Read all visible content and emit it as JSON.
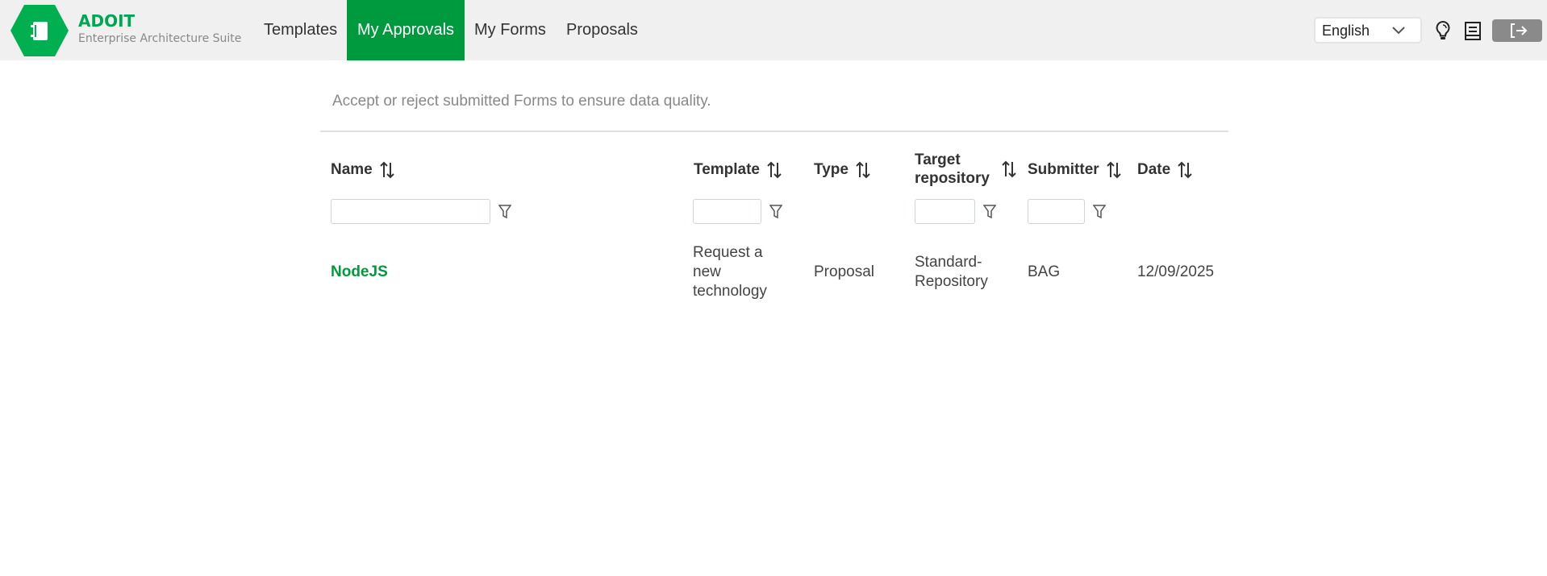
{
  "header": {
    "brand": "ADOIT",
    "subtitle": "Enterprise Architecture Suite",
    "nav": [
      {
        "label": "Templates",
        "active": false
      },
      {
        "label": "My Approvals",
        "active": true
      },
      {
        "label": "My Forms",
        "active": false
      },
      {
        "label": "Proposals",
        "active": false
      }
    ],
    "language": "English",
    "icons": [
      "lightbulb-icon",
      "book-icon",
      "logout-icon"
    ],
    "accent_color": "#009a3e"
  },
  "main": {
    "description": "Accept or reject submitted Forms to ensure data quality.",
    "columns": [
      {
        "label": "Name",
        "filter": ""
      },
      {
        "label": "Template",
        "filter": ""
      },
      {
        "label": "Type"
      },
      {
        "label": "Target repository",
        "filter": ""
      },
      {
        "label": "Submitter",
        "filter": ""
      },
      {
        "label": "Date"
      }
    ],
    "rows": [
      {
        "name": "NodeJS",
        "template": "Request a new technology",
        "type": "Proposal",
        "target": "Standard-Repository",
        "submitter": "BAG",
        "date": "12/09/2025"
      }
    ]
  }
}
